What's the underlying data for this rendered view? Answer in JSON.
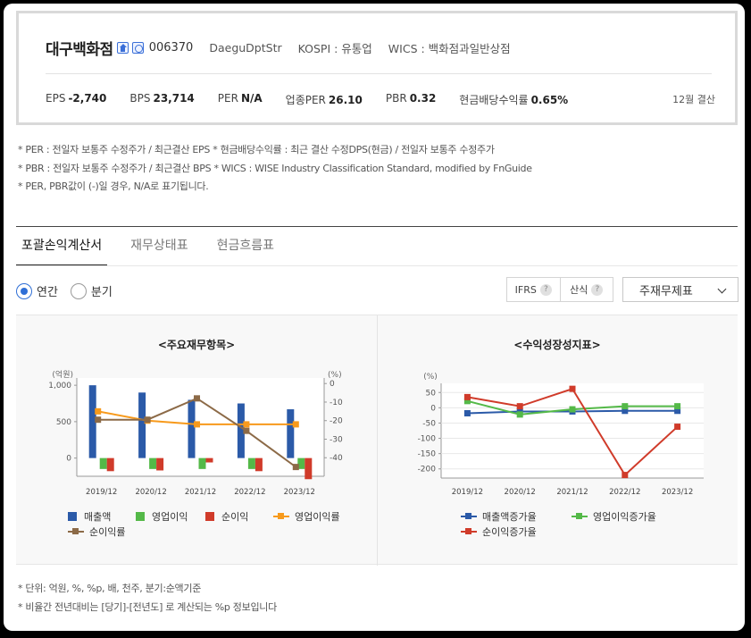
{
  "header": {
    "company_name": "대구백화점",
    "code": "006370",
    "english_name": "DaeguDptStr",
    "market": "KOSPI : 유통업",
    "wics": "WICS : 백화점과일반상점",
    "fiscal": "12월 결산",
    "icons": [
      "home-icon",
      "ir-icon"
    ],
    "metrics": [
      {
        "label": "EPS",
        "value": "-2,740"
      },
      {
        "label": "BPS",
        "value": "23,714"
      },
      {
        "label": "PER",
        "value": "N/A"
      },
      {
        "label": "업종PER",
        "value": "26.10"
      },
      {
        "label": "PBR",
        "value": "0.32"
      },
      {
        "label": "현금배당수익률",
        "value": "0.65%"
      }
    ]
  },
  "notes": [
    "* PER : 전일자 보통주 수정주가 / 최근결산 EPS * 현금배당수익률 : 최근 결산 수정DPS(현금) / 전일자 보통주 수정주가",
    "* PBR : 전일자 보통주 수정주가 / 최근결산 BPS * WICS : WISE Industry Classification Standard, modified by FnGuide",
    "* PER, PBR값이 (-)일 경우, N/A로 표기됩니다."
  ],
  "tabs": [
    {
      "label": "포괄손익계산서",
      "active": true
    },
    {
      "label": "재무상태표",
      "active": false
    },
    {
      "label": "현금흐름표",
      "active": false
    }
  ],
  "period": {
    "annual": "연간",
    "quarter": "분기",
    "selected": "annual"
  },
  "options": {
    "ifrs": "IFRS",
    "calc": "산식",
    "help": "?",
    "select_value": "주재무제표"
  },
  "colors": {
    "sales": "#2b5aa8",
    "op_income": "#54b948",
    "net_income": "#d03b2a",
    "op_margin": "#f79a1c",
    "net_margin": "#8c6a47"
  },
  "chart_data": [
    {
      "type": "bar",
      "title": "<주요재무항목>",
      "categories": [
        "2019/12",
        "2020/12",
        "2021/12",
        "2022/12",
        "2023/12"
      ],
      "ylabel_left": "(억원)",
      "ylabel_right": "(%)",
      "ylim_left": [
        -250,
        1100
      ],
      "ylim_right": [
        -50,
        3
      ],
      "yticks_left": [
        1000,
        500,
        0
      ],
      "yticks_left_labels": [
        "1,000",
        "500",
        "0"
      ],
      "yticks_right": [
        0,
        -10,
        -20,
        -30,
        -40
      ],
      "yticks_right_labels": [
        "0",
        "-10",
        "-20",
        "-30",
        "-40"
      ],
      "series": [
        {
          "name": "매출액",
          "kind": "bar",
          "axis": "left",
          "values": [
            1000,
            900,
            800,
            750,
            670
          ]
        },
        {
          "name": "영업이익",
          "kind": "bar",
          "axis": "left",
          "values": [
            -150,
            -150,
            -150,
            -150,
            -150
          ]
        },
        {
          "name": "순이익",
          "kind": "bar",
          "axis": "left",
          "values": [
            -180,
            -170,
            -60,
            -180,
            -290
          ]
        },
        {
          "name": "영업이익률",
          "kind": "line",
          "axis": "right",
          "values": [
            -15,
            -20,
            -22,
            -22,
            -22
          ]
        },
        {
          "name": "순이익률",
          "kind": "line",
          "axis": "right",
          "values": [
            -19.5,
            -19.5,
            -8,
            -25.5,
            -45
          ]
        }
      ]
    },
    {
      "type": "line",
      "title": "<수익성장성지표>",
      "categories": [
        "2019/12",
        "2020/12",
        "2021/12",
        "2022/12",
        "2023/12"
      ],
      "ylabel": "(%)",
      "ylim": [
        -230,
        80
      ],
      "yticks": [
        50,
        0,
        -50,
        -100,
        -150,
        -200
      ],
      "series": [
        {
          "name": "매출액증가율",
          "values": [
            -18,
            -12,
            -12,
            -10,
            -10
          ]
        },
        {
          "name": "영업이익증가율",
          "values": [
            22,
            -22,
            -5,
            5,
            5
          ]
        },
        {
          "name": "순이익증가율",
          "values": [
            35,
            5,
            62,
            -220,
            -62
          ]
        }
      ]
    }
  ],
  "footnotes": [
    "* 단위: 억원, %, %p, 배, 천주, 분기:순액기준",
    "* 비율간 전년대비는 [당기]-[전년도] 로 계산되는 %p 정보입니다"
  ]
}
